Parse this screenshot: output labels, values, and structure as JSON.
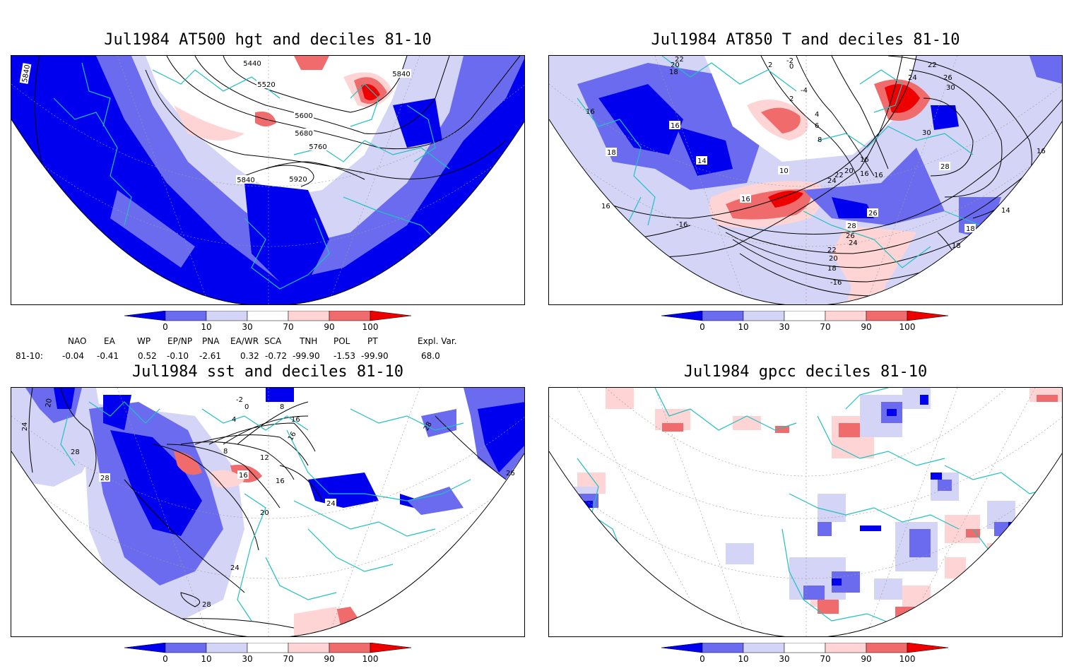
{
  "panels": [
    {
      "id": "p1",
      "title": "Jul1984 AT500 hgt and deciles 81-10",
      "contour_labels": [
        "5840",
        "5440",
        "5520",
        "5600",
        "5680",
        "5760",
        "5840",
        "5920",
        "5840"
      ]
    },
    {
      "id": "p2",
      "title": "Jul1984 AT850 T and deciles 81-10",
      "contour_labels": [
        "22",
        "20",
        "18",
        "16",
        "16",
        "18",
        "14",
        "16",
        "10",
        "16",
        "-16",
        "16",
        "2",
        "-2",
        "0",
        "-4",
        "4",
        "2",
        "6",
        "8",
        "22",
        "24",
        "26",
        "30",
        "30",
        "28",
        "16",
        "16",
        "20",
        "22",
        "24",
        "16",
        "26",
        "28",
        "26",
        "24",
        "22",
        "20",
        "18",
        "-16",
        "14",
        "18",
        "18"
      ]
    },
    {
      "id": "p3",
      "title": "Jul1984 sst and deciles 81-10",
      "contour_labels": [
        "24",
        "20",
        "28",
        "28",
        "8",
        "12",
        "16",
        "16",
        "20",
        "16",
        "24",
        "24",
        "28",
        "26",
        "28",
        "-2",
        "0",
        "4",
        "8",
        "16"
      ]
    },
    {
      "id": "p4",
      "title": "Jul1984 gpcc deciles 81-10",
      "contour_labels": []
    }
  ],
  "colorbar": {
    "tick_labels": [
      "0",
      "10",
      "30",
      "70",
      "90",
      "100"
    ],
    "colors": [
      "#0000ee",
      "#6b6bf0",
      "#d4d4f7",
      "#ffffff",
      "#ffd4d4",
      "#f06b6b",
      "#ee0000"
    ]
  },
  "indices": {
    "headers": [
      "NAO",
      "EA",
      "WP",
      "EP/NP",
      "PNA",
      "EA/WR",
      "SCA",
      "TNH",
      "POL",
      "PT",
      "Expl. Var."
    ],
    "row_label": "81-10:",
    "values": [
      "-0.04",
      "-0.41",
      "0.52",
      "-0.10",
      "-2.61",
      "0.32",
      "-0.72",
      "-99.90",
      "-1.53",
      "-99.90",
      "68.0"
    ]
  },
  "style": {
    "coast_color": "#20c0c0",
    "grid_color": "#999999"
  }
}
